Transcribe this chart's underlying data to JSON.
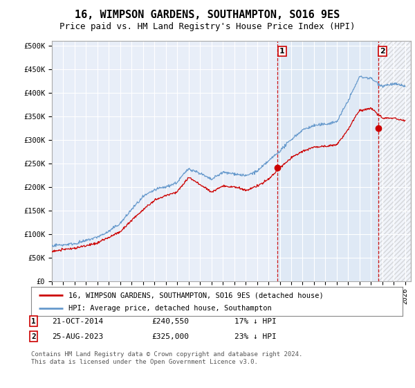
{
  "title": "16, WIMPSON GARDENS, SOUTHAMPTON, SO16 9ES",
  "subtitle": "Price paid vs. HM Land Registry's House Price Index (HPI)",
  "ylabel_ticks": [
    "£0",
    "£50K",
    "£100K",
    "£150K",
    "£200K",
    "£250K",
    "£300K",
    "£350K",
    "£400K",
    "£450K",
    "£500K"
  ],
  "ytick_values": [
    0,
    50000,
    100000,
    150000,
    200000,
    250000,
    300000,
    350000,
    400000,
    450000,
    500000
  ],
  "ylim": [
    0,
    510000
  ],
  "xlim_start": 1995.0,
  "xlim_end": 2026.5,
  "hpi_color": "#6699cc",
  "price_color": "#cc0000",
  "sale1_date": 2014.81,
  "sale1_price": 240550,
  "sale2_date": 2023.65,
  "sale2_price": 325000,
  "vline1_x": 2014.81,
  "vline2_x": 2023.65,
  "legend_label1": "16, WIMPSON GARDENS, SOUTHAMPTON, SO16 9ES (detached house)",
  "legend_label2": "HPI: Average price, detached house, Southampton",
  "footnote": "Contains HM Land Registry data © Crown copyright and database right 2024.\nThis data is licensed under the Open Government Licence v3.0.",
  "plot_bg_color": "#e8eef8",
  "shade_color": "#dce8f5",
  "grid_color": "#ffffff",
  "title_fontsize": 11,
  "subtitle_fontsize": 9,
  "hpi_anchors": [
    [
      1995,
      75000
    ],
    [
      1996,
      78000
    ],
    [
      1997,
      82000
    ],
    [
      1998,
      88000
    ],
    [
      1999,
      96000
    ],
    [
      2000,
      108000
    ],
    [
      2001,
      125000
    ],
    [
      2002,
      155000
    ],
    [
      2003,
      180000
    ],
    [
      2004,
      195000
    ],
    [
      2005,
      200000
    ],
    [
      2006,
      210000
    ],
    [
      2007,
      240000
    ],
    [
      2008,
      230000
    ],
    [
      2009,
      215000
    ],
    [
      2010,
      230000
    ],
    [
      2011,
      228000
    ],
    [
      2012,
      222000
    ],
    [
      2013,
      232000
    ],
    [
      2014,
      252000
    ],
    [
      2015,
      275000
    ],
    [
      2016,
      300000
    ],
    [
      2017,
      320000
    ],
    [
      2018,
      330000
    ],
    [
      2019,
      335000
    ],
    [
      2020,
      340000
    ],
    [
      2021,
      385000
    ],
    [
      2022,
      435000
    ],
    [
      2023,
      430000
    ],
    [
      2024,
      415000
    ],
    [
      2025,
      420000
    ],
    [
      2026,
      415000
    ]
  ],
  "price_anchors": [
    [
      1995,
      63000
    ],
    [
      1996,
      66000
    ],
    [
      1997,
      68000
    ],
    [
      1998,
      72000
    ],
    [
      1999,
      78000
    ],
    [
      2000,
      88000
    ],
    [
      2001,
      100000
    ],
    [
      2002,
      125000
    ],
    [
      2003,
      148000
    ],
    [
      2004,
      168000
    ],
    [
      2005,
      178000
    ],
    [
      2006,
      185000
    ],
    [
      2007,
      215000
    ],
    [
      2008,
      200000
    ],
    [
      2009,
      182000
    ],
    [
      2010,
      195000
    ],
    [
      2011,
      192000
    ],
    [
      2012,
      185000
    ],
    [
      2013,
      195000
    ],
    [
      2014,
      210000
    ],
    [
      2015,
      235000
    ],
    [
      2016,
      255000
    ],
    [
      2017,
      270000
    ],
    [
      2018,
      278000
    ],
    [
      2019,
      280000
    ],
    [
      2020,
      283000
    ],
    [
      2021,
      315000
    ],
    [
      2022,
      355000
    ],
    [
      2023,
      360000
    ],
    [
      2024,
      340000
    ],
    [
      2025,
      340000
    ],
    [
      2026,
      335000
    ]
  ]
}
